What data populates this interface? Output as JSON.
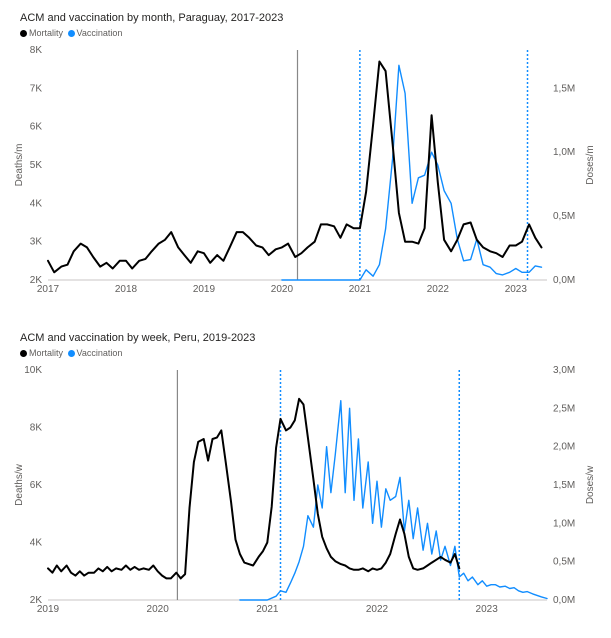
{
  "chart_data": [
    {
      "type": "line",
      "title": "ACM and vaccination by month, Paraguay, 2017-2023",
      "legend": {
        "placement": "top-left",
        "items": [
          {
            "name": "Mortality",
            "color": "#000000"
          },
          {
            "name": "Vaccination",
            "color": "#118DFF"
          }
        ]
      },
      "y_left": {
        "label": "Deaths/m",
        "ylim": [
          2000,
          8000
        ],
        "ticks": [
          2000,
          3000,
          4000,
          5000,
          6000,
          7000,
          8000
        ],
        "tick_labels": [
          "2K",
          "3K",
          "4K",
          "5K",
          "6K",
          "7K",
          "8K"
        ]
      },
      "y_right": {
        "label": "Doses/m",
        "ylim": [
          0,
          1800000
        ],
        "ticks": [
          0,
          500000,
          1000000,
          1500000
        ],
        "tick_labels": [
          "0,0M",
          "0,5M",
          "1,0M",
          "1,5M"
        ]
      },
      "x_axis": {
        "xlim": [
          2017.0,
          2023.4
        ],
        "ticks": [
          2017,
          2018,
          2019,
          2020,
          2021,
          2022,
          2023
        ],
        "tick_labels": [
          "2017",
          "2018",
          "2019",
          "2020",
          "2021",
          "2022",
          "2023"
        ]
      },
      "grid": false,
      "reference_lines": [
        {
          "x": 2020.2,
          "style": "solid",
          "color": "#888888"
        },
        {
          "x": 2021.0,
          "style": "dotted",
          "color": "#118DFF"
        },
        {
          "x": 2023.15,
          "style": "dotted",
          "color": "#118DFF"
        }
      ],
      "series": [
        {
          "name": "Mortality",
          "axis": "left",
          "color": "#000000",
          "x": [
            2017.0,
            2017.08,
            2017.17,
            2017.25,
            2017.33,
            2017.42,
            2017.5,
            2017.58,
            2017.67,
            2017.75,
            2017.83,
            2017.92,
            2018.0,
            2018.08,
            2018.17,
            2018.25,
            2018.33,
            2018.42,
            2018.5,
            2018.58,
            2018.67,
            2018.75,
            2018.83,
            2018.92,
            2019.0,
            2019.08,
            2019.17,
            2019.25,
            2019.33,
            2019.42,
            2019.5,
            2019.58,
            2019.67,
            2019.75,
            2019.83,
            2019.92,
            2020.0,
            2020.08,
            2020.17,
            2020.25,
            2020.33,
            2020.42,
            2020.5,
            2020.58,
            2020.67,
            2020.75,
            2020.83,
            2020.92,
            2021.0,
            2021.08,
            2021.17,
            2021.25,
            2021.33,
            2021.42,
            2021.5,
            2021.58,
            2021.67,
            2021.75,
            2021.83,
            2021.92,
            2022.0,
            2022.08,
            2022.17,
            2022.25,
            2022.33,
            2022.42,
            2022.5,
            2022.58,
            2022.67,
            2022.75,
            2022.83,
            2022.92,
            2023.0,
            2023.08,
            2023.17,
            2023.25,
            2023.33
          ],
          "y": [
            2500,
            2200,
            2350,
            2400,
            2750,
            2950,
            2850,
            2600,
            2350,
            2450,
            2300,
            2500,
            2500,
            2300,
            2500,
            2550,
            2750,
            2950,
            3050,
            3250,
            2850,
            2650,
            2450,
            2750,
            2700,
            2450,
            2650,
            2500,
            2850,
            3250,
            3250,
            3100,
            2900,
            2850,
            2650,
            2800,
            2850,
            2950,
            2600,
            2700,
            2850,
            3000,
            3450,
            3450,
            3400,
            3100,
            3450,
            3350,
            3350,
            4300,
            6050,
            7700,
            7450,
            5550,
            3750,
            3000,
            3000,
            2950,
            3350,
            6300,
            4550,
            3050,
            2750,
            3050,
            3450,
            3500,
            3050,
            2850,
            2750,
            2700,
            2600,
            2900,
            2900,
            3000,
            3450,
            3100,
            2850
          ]
        },
        {
          "name": "Vaccination",
          "axis": "right",
          "color": "#118DFF",
          "x": [
            2020.0,
            2020.5,
            2020.92,
            2021.0,
            2021.08,
            2021.17,
            2021.25,
            2021.33,
            2021.42,
            2021.5,
            2021.58,
            2021.67,
            2021.75,
            2021.83,
            2021.92,
            2022.0,
            2022.08,
            2022.17,
            2022.25,
            2022.33,
            2022.42,
            2022.5,
            2022.58,
            2022.67,
            2022.75,
            2022.83,
            2022.92,
            2023.0,
            2023.08,
            2023.17,
            2023.25,
            2023.33
          ],
          "y": [
            0,
            0,
            0,
            0,
            80000,
            30000,
            120000,
            400000,
            950000,
            1680000,
            1460000,
            600000,
            800000,
            820000,
            1000000,
            900000,
            700000,
            600000,
            320000,
            150000,
            160000,
            320000,
            120000,
            100000,
            50000,
            40000,
            60000,
            90000,
            60000,
            60000,
            110000,
            100000
          ]
        }
      ]
    },
    {
      "type": "line",
      "title": "ACM and vaccination by week, Peru, 2019-2023",
      "legend": {
        "placement": "top-left",
        "items": [
          {
            "name": "Mortality",
            "color": "#000000"
          },
          {
            "name": "Vaccination",
            "color": "#118DFF"
          }
        ]
      },
      "y_left": {
        "label": "Deaths/w",
        "ylim": [
          2000,
          10000
        ],
        "ticks": [
          2000,
          4000,
          6000,
          8000,
          10000
        ],
        "tick_labels": [
          "2K",
          "4K",
          "6K",
          "8K",
          "10K"
        ]
      },
      "y_right": {
        "label": "Doses/w",
        "ylim": [
          0,
          3000000
        ],
        "ticks": [
          0,
          500000,
          1000000,
          1500000,
          2000000,
          2500000,
          3000000
        ],
        "tick_labels": [
          "0,0M",
          "0,5M",
          "1,0M",
          "1,5M",
          "2,0M",
          "2,5M",
          "3,0M"
        ]
      },
      "x_axis": {
        "xlim": [
          2019.0,
          2023.55
        ],
        "ticks": [
          2019,
          2020,
          2021,
          2022,
          2023
        ],
        "tick_labels": [
          "2019",
          "2020",
          "2021",
          "2022",
          "2023"
        ]
      },
      "grid": false,
      "reference_lines": [
        {
          "x": 2020.18,
          "style": "solid",
          "color": "#888888"
        },
        {
          "x": 2021.12,
          "style": "dotted",
          "color": "#118DFF"
        },
        {
          "x": 2022.75,
          "style": "dotted",
          "color": "#118DFF"
        }
      ],
      "series": [
        {
          "name": "Mortality",
          "axis": "left",
          "color": "#000000",
          "x": [
            2019.0,
            2019.04,
            2019.08,
            2019.12,
            2019.17,
            2019.21,
            2019.25,
            2019.29,
            2019.33,
            2019.37,
            2019.42,
            2019.46,
            2019.5,
            2019.54,
            2019.58,
            2019.62,
            2019.67,
            2019.71,
            2019.75,
            2019.79,
            2019.83,
            2019.87,
            2019.92,
            2019.96,
            2020.0,
            2020.04,
            2020.08,
            2020.12,
            2020.17,
            2020.21,
            2020.25,
            2020.29,
            2020.33,
            2020.37,
            2020.42,
            2020.46,
            2020.5,
            2020.54,
            2020.58,
            2020.62,
            2020.67,
            2020.71,
            2020.75,
            2020.79,
            2020.83,
            2020.87,
            2020.92,
            2020.96,
            2021.0,
            2021.04,
            2021.08,
            2021.12,
            2021.17,
            2021.21,
            2021.25,
            2021.29,
            2021.33,
            2021.37,
            2021.42,
            2021.46,
            2021.5,
            2021.54,
            2021.58,
            2021.62,
            2021.67,
            2021.71,
            2021.75,
            2021.79,
            2021.83,
            2021.87,
            2021.92,
            2021.96,
            2022.0,
            2022.04,
            2022.08,
            2022.12,
            2022.17,
            2022.21,
            2022.25,
            2022.29,
            2022.33,
            2022.37,
            2022.42,
            2022.46,
            2022.5,
            2022.54,
            2022.58,
            2022.62,
            2022.67,
            2022.71,
            2022.75
          ],
          "y": [
            3100,
            2950,
            3200,
            3000,
            3200,
            2950,
            2850,
            3000,
            2850,
            2950,
            2950,
            3100,
            3000,
            3150,
            3000,
            3100,
            3050,
            3200,
            3050,
            3150,
            3050,
            3100,
            3050,
            3200,
            3000,
            2850,
            2750,
            2750,
            2950,
            2750,
            2900,
            5200,
            6800,
            7500,
            7600,
            6850,
            7600,
            7650,
            7900,
            6800,
            5400,
            4100,
            3600,
            3300,
            3250,
            3200,
            3500,
            3700,
            4000,
            5250,
            7300,
            8300,
            7900,
            8000,
            8250,
            9000,
            8800,
            7650,
            6200,
            5000,
            4200,
            3800,
            3500,
            3350,
            3250,
            3200,
            3100,
            3050,
            3050,
            3100,
            3000,
            3100,
            3050,
            3100,
            3300,
            3600,
            4300,
            4800,
            4300,
            3500,
            3100,
            3050,
            3100,
            3200,
            3300,
            3400,
            3500,
            3400,
            3300,
            3600,
            3100
          ]
        },
        {
          "name": "Vaccination",
          "axis": "right",
          "color": "#118DFF",
          "x": [
            2020.75,
            2021.0,
            2021.08,
            2021.12,
            2021.17,
            2021.21,
            2021.25,
            2021.29,
            2021.33,
            2021.37,
            2021.42,
            2021.46,
            2021.5,
            2021.54,
            2021.58,
            2021.62,
            2021.67,
            2021.71,
            2021.75,
            2021.79,
            2021.83,
            2021.87,
            2021.92,
            2021.96,
            2022.0,
            2022.04,
            2022.08,
            2022.12,
            2022.17,
            2022.21,
            2022.25,
            2022.29,
            2022.33,
            2022.37,
            2022.42,
            2022.46,
            2022.5,
            2022.54,
            2022.58,
            2022.62,
            2022.67,
            2022.71,
            2022.75,
            2022.79,
            2022.83,
            2022.87,
            2022.92,
            2022.96,
            2023.0,
            2023.04,
            2023.08,
            2023.12,
            2023.17,
            2023.21,
            2023.25,
            2023.29,
            2023.33,
            2023.37,
            2023.42,
            2023.46,
            2023.5,
            2023.55
          ],
          "y": [
            0,
            0,
            50000,
            120000,
            100000,
            220000,
            350000,
            500000,
            700000,
            1100000,
            950000,
            1500000,
            1200000,
            2000000,
            1400000,
            1900000,
            2600000,
            1400000,
            2500000,
            1300000,
            2100000,
            1200000,
            1800000,
            1000000,
            1550000,
            950000,
            1450000,
            1300000,
            1350000,
            1600000,
            900000,
            1300000,
            800000,
            1200000,
            650000,
            1000000,
            600000,
            900000,
            520000,
            700000,
            450000,
            700000,
            300000,
            350000,
            250000,
            300000,
            200000,
            250000,
            180000,
            200000,
            200000,
            170000,
            180000,
            150000,
            160000,
            120000,
            100000,
            110000,
            80000,
            60000,
            40000,
            20000
          ]
        }
      ]
    }
  ]
}
